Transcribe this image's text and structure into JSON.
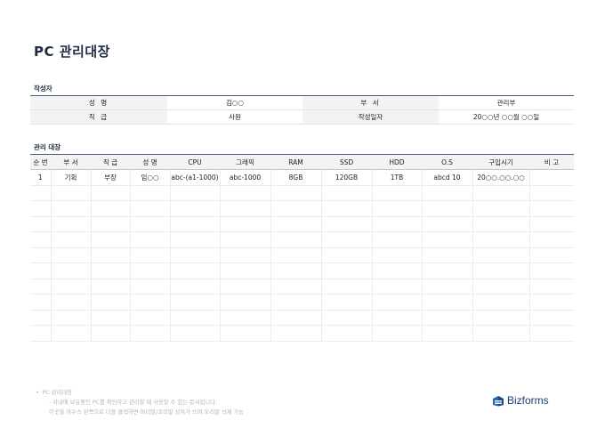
{
  "title": "PC 관리대장",
  "author_section": {
    "label": "작성자",
    "rows": [
      {
        "label1": "성   명",
        "value1": "김○○",
        "label2": "부   서",
        "value2": "관리부"
      },
      {
        "label1": "직   급",
        "value1": "사원",
        "label2": "작성일자",
        "value2": "20○○년 ○○월 ○○일"
      }
    ]
  },
  "mgmt_section": {
    "label": "관리 대장",
    "headers": [
      "순 번",
      "부 서",
      "직 급",
      "성 명",
      "CPU",
      "그래픽",
      "RAM",
      "SSD",
      "HDD",
      "O.S",
      "구입시기",
      "비 고"
    ],
    "rows": [
      [
        "1",
        "기획",
        "부장",
        "임○○",
        "abc-(a1-1000)",
        "abc-1000",
        "8GB",
        "120GB",
        "1TB",
        "abcd 10",
        "20○○.○○.○○",
        ""
      ],
      [
        "",
        "",
        "",
        "",
        "",
        "",
        "",
        "",
        "",
        "",
        "",
        ""
      ],
      [
        "",
        "",
        "",
        "",
        "",
        "",
        "",
        "",
        "",
        "",
        "",
        ""
      ],
      [
        "",
        "",
        "",
        "",
        "",
        "",
        "",
        "",
        "",
        "",
        "",
        ""
      ],
      [
        "",
        "",
        "",
        "",
        "",
        "",
        "",
        "",
        "",
        "",
        "",
        ""
      ],
      [
        "",
        "",
        "",
        "",
        "",
        "",
        "",
        "",
        "",
        "",
        "",
        ""
      ],
      [
        "",
        "",
        "",
        "",
        "",
        "",
        "",
        "",
        "",
        "",
        "",
        ""
      ],
      [
        "",
        "",
        "",
        "",
        "",
        "",
        "",
        "",
        "",
        "",
        "",
        ""
      ],
      [
        "",
        "",
        "",
        "",
        "",
        "",
        "",
        "",
        "",
        "",
        "",
        ""
      ],
      [
        "",
        "",
        "",
        "",
        "",
        "",
        "",
        "",
        "",
        "",
        "",
        ""
      ],
      [
        "",
        "",
        "",
        "",
        "",
        "",
        "",
        "",
        "",
        "",
        "",
        ""
      ]
    ]
  },
  "notes": {
    "bullet": "PC 관리대장",
    "lines": [
      "- 사내에 보유중인 PC를 확인하고 관리할 때 사용할 수 있는 문서입니다.",
      "이곳을 마우스 왼쪽으로 더블 클릭하면 머리말/꼬리말 상자가 뜨며 꼬리말 삭제 가능"
    ]
  },
  "brand": {
    "name": "Bizforms",
    "icon": "bizforms-logo-icon",
    "color": "#1f3f6e"
  },
  "colors": {
    "title": "#1f2a44",
    "header_border": "#4a5a7a",
    "label_bg": "#f3f3f3"
  }
}
